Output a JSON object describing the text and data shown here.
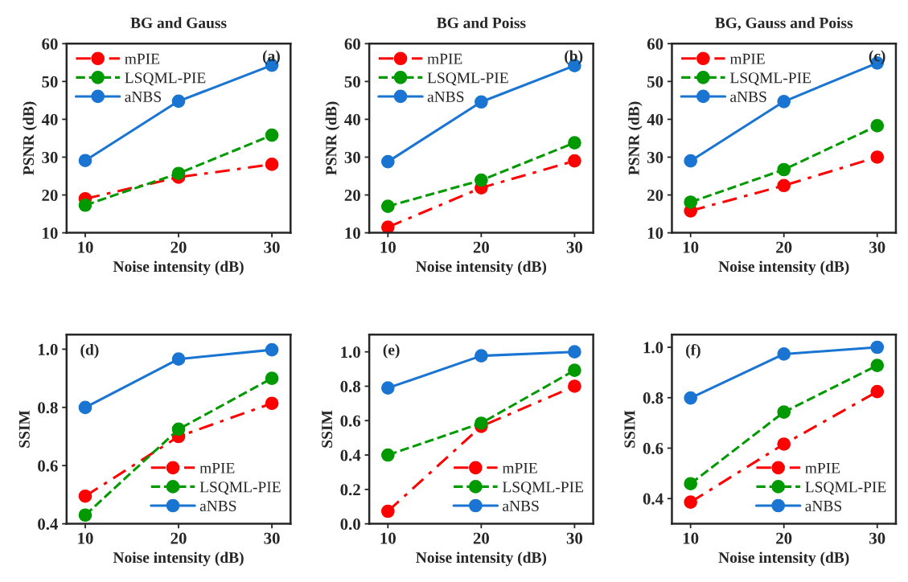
{
  "chart_data": [
    {
      "type": "line",
      "title": "BG and Gauss",
      "xlabel": "Noise intensity (dB)",
      "ylabel": "PSNR (dB)",
      "x": [
        10,
        20,
        30
      ],
      "xlim": [
        8,
        32
      ],
      "xticks": [
        10,
        20,
        30
      ],
      "ylim": [
        10,
        60
      ],
      "yticks": [
        10,
        20,
        30,
        40,
        50,
        60
      ],
      "legend": "top left",
      "marker": "circle",
      "annotations": [
        "(a)"
      ],
      "series": [
        {
          "name": "mPIE",
          "color": "#ff0000",
          "line_style": "dashdot",
          "values": [
            19,
            24.7,
            28.1
          ]
        },
        {
          "name": "LSQML-PIE",
          "color": "#009900",
          "line_style": "dashed",
          "values": [
            17.3,
            25.7,
            35.8
          ]
        },
        {
          "name": "aNBS",
          "color": "#1a75d2",
          "line_style": "solid",
          "values": [
            29.1,
            44.8,
            54.3
          ]
        }
      ]
    },
    {
      "type": "line",
      "title": "BG and Poiss",
      "xlabel": "Noise intensity (dB)",
      "ylabel": "PSNR (dB)",
      "x": [
        10,
        20,
        30
      ],
      "xlim": [
        8,
        32
      ],
      "xticks": [
        10,
        20,
        30
      ],
      "ylim": [
        10,
        60
      ],
      "yticks": [
        10,
        20,
        30,
        40,
        50,
        60
      ],
      "legend": "top left",
      "marker": "circle",
      "annotations": [
        "(b)"
      ],
      "series": [
        {
          "name": "mPIE",
          "color": "#ff0000",
          "line_style": "dashdot",
          "values": [
            11.5,
            21.9,
            29
          ]
        },
        {
          "name": "LSQML-PIE",
          "color": "#009900",
          "line_style": "dashed",
          "values": [
            17,
            23.9,
            33.8
          ]
        },
        {
          "name": "aNBS",
          "color": "#1a75d2",
          "line_style": "solid",
          "values": [
            28.8,
            44.6,
            54.2
          ]
        }
      ]
    },
    {
      "type": "line",
      "title": "BG, Gauss and Poiss",
      "xlabel": "Noise intensity (dB)",
      "ylabel": "PSNR (dB)",
      "x": [
        10,
        20,
        30
      ],
      "xlim": [
        8,
        32
      ],
      "xticks": [
        10,
        20,
        30
      ],
      "ylim": [
        10,
        60
      ],
      "yticks": [
        10,
        20,
        30,
        40,
        50,
        60
      ],
      "legend": "top left",
      "marker": "circle",
      "annotations": [
        "(c)"
      ],
      "series": [
        {
          "name": "mPIE",
          "color": "#ff0000",
          "line_style": "dashdot",
          "values": [
            15.8,
            22.5,
            30
          ]
        },
        {
          "name": "LSQML-PIE",
          "color": "#009900",
          "line_style": "dashed",
          "values": [
            18.1,
            26.7,
            38.3
          ]
        },
        {
          "name": "aNBS",
          "color": "#1a75d2",
          "line_style": "solid",
          "values": [
            29,
            44.7,
            54.9
          ]
        }
      ]
    },
    {
      "type": "line",
      "xlabel": "Noise intensity (dB)",
      "ylabel": "SSIM",
      "x": [
        10,
        20,
        30
      ],
      "xlim": [
        8,
        32
      ],
      "xticks": [
        10,
        20,
        30
      ],
      "ylim": [
        0.4,
        1.05
      ],
      "yticks": [
        {
          "value": 0.4,
          "label": "0.4"
        },
        {
          "value": 0.6,
          "label": "0.6"
        },
        {
          "value": 0.8,
          "label": "0.8"
        },
        {
          "value": 1.0,
          "label": "1.0"
        }
      ],
      "legend": "bottom right",
      "marker": "circle",
      "annotations": [
        "(d)"
      ],
      "series": [
        {
          "name": "mPIE",
          "color": "#ff0000",
          "line_style": "dashdot",
          "values": [
            0.495,
            0.7,
            0.814
          ]
        },
        {
          "name": "LSQML-PIE",
          "color": "#009900",
          "line_style": "dashed",
          "values": [
            0.43,
            0.725,
            0.9
          ]
        },
        {
          "name": "aNBS",
          "color": "#1a75d2",
          "line_style": "solid",
          "values": [
            0.8,
            0.966,
            0.998
          ]
        }
      ]
    },
    {
      "type": "line",
      "xlabel": "Noise intensity (dB)",
      "ylabel": "SSIM",
      "x": [
        10,
        20,
        30
      ],
      "xlim": [
        8,
        32
      ],
      "xticks": [
        10,
        20,
        30
      ],
      "ylim": [
        0,
        1.1
      ],
      "yticks": [
        {
          "value": 0,
          "label": "0.0"
        },
        {
          "value": 0.2,
          "label": "0.2"
        },
        {
          "value": 0.4,
          "label": "0.4"
        },
        {
          "value": 0.6,
          "label": "0.6"
        },
        {
          "value": 0.8,
          "label": "0.8"
        },
        {
          "value": 1.0,
          "label": "1.0"
        }
      ],
      "legend": "bottom right",
      "marker": "circle",
      "annotations": [
        "(e)"
      ],
      "series": [
        {
          "name": "mPIE",
          "color": "#ff0000",
          "line_style": "dashdot",
          "values": [
            0.073,
            0.567,
            0.8
          ]
        },
        {
          "name": "LSQML-PIE",
          "color": "#009900",
          "line_style": "dashed",
          "values": [
            0.4,
            0.585,
            0.893
          ]
        },
        {
          "name": "aNBS",
          "color": "#1a75d2",
          "line_style": "solid",
          "values": [
            0.79,
            0.977,
            1.0
          ]
        }
      ]
    },
    {
      "type": "line",
      "xlabel": "Noise intensity (dB)",
      "ylabel": "SSIM",
      "x": [
        10,
        20,
        30
      ],
      "xlim": [
        8,
        32
      ],
      "xticks": [
        10,
        20,
        30
      ],
      "ylim": [
        0.3,
        1.05
      ],
      "yticks": [
        {
          "value": 0.4,
          "label": "0.4"
        },
        {
          "value": 0.6,
          "label": "0.6"
        },
        {
          "value": 0.8,
          "label": "0.8"
        },
        {
          "value": 1.0,
          "label": "1.0"
        }
      ],
      "legend": "bottom right",
      "marker": "circle",
      "annotations": [
        "(f)"
      ],
      "series": [
        {
          "name": "mPIE",
          "color": "#ff0000",
          "line_style": "dashdot",
          "values": [
            0.386,
            0.616,
            0.824
          ]
        },
        {
          "name": "LSQML-PIE",
          "color": "#009900",
          "line_style": "dashed",
          "values": [
            0.459,
            0.743,
            0.928
          ]
        },
        {
          "name": "aNBS",
          "color": "#1a75d2",
          "line_style": "solid",
          "values": [
            0.799,
            0.973,
            1.0
          ]
        }
      ]
    }
  ]
}
